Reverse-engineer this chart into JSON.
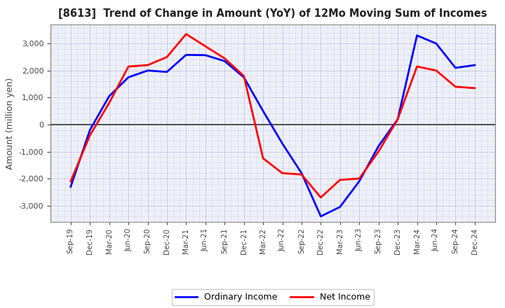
{
  "title": "[8613]  Trend of Change in Amount (YoY) of 12Mo Moving Sum of Incomes",
  "ylabel": "Amount (million yen)",
  "x_labels": [
    "Sep-19",
    "Dec-19",
    "Mar-20",
    "Jun-20",
    "Sep-20",
    "Dec-20",
    "Mar-21",
    "Jun-21",
    "Sep-21",
    "Dec-21",
    "Mar-22",
    "Jun-22",
    "Sep-22",
    "Dec-22",
    "Mar-23",
    "Jun-23",
    "Sep-23",
    "Dec-23",
    "Mar-24",
    "Jun-24",
    "Sep-24",
    "Dec-24"
  ],
  "ordinary_income": [
    -2300,
    -200,
    1050,
    1750,
    2000,
    1950,
    2580,
    2570,
    2350,
    1750,
    500,
    -700,
    -1800,
    -3400,
    -3050,
    -2100,
    -800,
    200,
    3300,
    3000,
    2100,
    2200
  ],
  "net_income": [
    -2100,
    -400,
    800,
    2150,
    2200,
    2500,
    3350,
    2900,
    2450,
    1800,
    -1250,
    -1800,
    -1850,
    -2700,
    -2050,
    -2000,
    -1000,
    200,
    2150,
    2000,
    1400,
    1350
  ],
  "ordinary_color": "#0000ff",
  "net_color": "#ff0000",
  "ylim": [
    -3600,
    3700
  ],
  "yticks": [
    -3000,
    -2000,
    -1000,
    0,
    1000,
    2000,
    3000
  ],
  "legend_labels": [
    "Ordinary Income",
    "Net Income"
  ],
  "background_color": "#ffffff",
  "plot_bg_color": "#eef0f8",
  "grid_color": "#5555aa",
  "zero_line_color": "#333333",
  "line_width": 2.0,
  "title_color": "#222222",
  "tick_color": "#444444"
}
